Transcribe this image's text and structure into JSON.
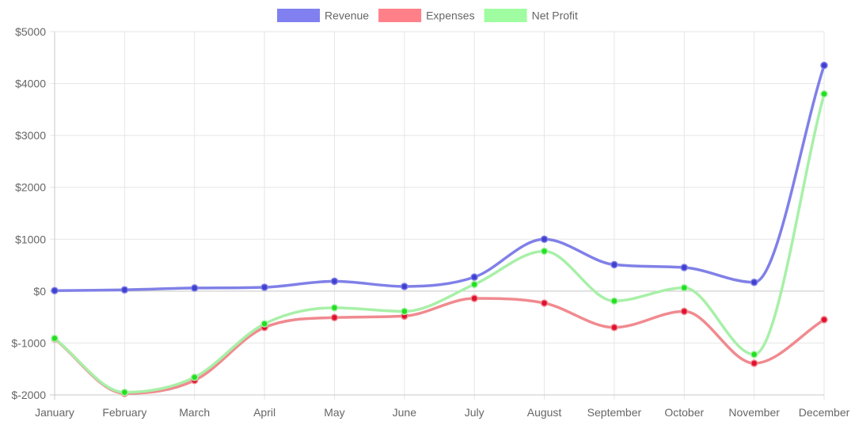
{
  "chart_data": {
    "type": "line",
    "title": "",
    "xlabel": "",
    "ylabel": "",
    "ylim": [
      -2000,
      5000
    ],
    "y_ticks": [
      5000,
      4000,
      3000,
      2000,
      1000,
      0,
      -1000,
      -2000
    ],
    "y_tick_labels": [
      "$5000",
      "$4000",
      "$3000",
      "$2000",
      "$1000",
      "$0",
      "$-1000",
      "$-2000"
    ],
    "grid": true,
    "legend_position": "top-center",
    "categories": [
      "January",
      "February",
      "March",
      "April",
      "May",
      "June",
      "July",
      "August",
      "September",
      "October",
      "November",
      "December"
    ],
    "series": [
      {
        "name": "Revenue",
        "line_color": "#8080e8",
        "fill_color": "#8080f0",
        "point_color": "#4040d0",
        "values": [
          10,
          25,
          60,
          75,
          190,
          90,
          270,
          1000,
          510,
          455,
          170,
          4350
        ]
      },
      {
        "name": "Expenses",
        "line_color": "#f08a8f",
        "fill_color": "#ff8088",
        "point_color": "#e01030",
        "values": [
          -920,
          -1970,
          -1720,
          -700,
          -510,
          -480,
          -140,
          -230,
          -700,
          -390,
          -1390,
          -550
        ]
      },
      {
        "name": "Net Profit",
        "line_color": "#a8f0a8",
        "fill_color": "#a0fca0",
        "point_color": "#20e020",
        "values": [
          -910,
          -1950,
          -1660,
          -630,
          -320,
          -390,
          130,
          770,
          -190,
          65,
          -1220,
          3800
        ]
      }
    ]
  }
}
